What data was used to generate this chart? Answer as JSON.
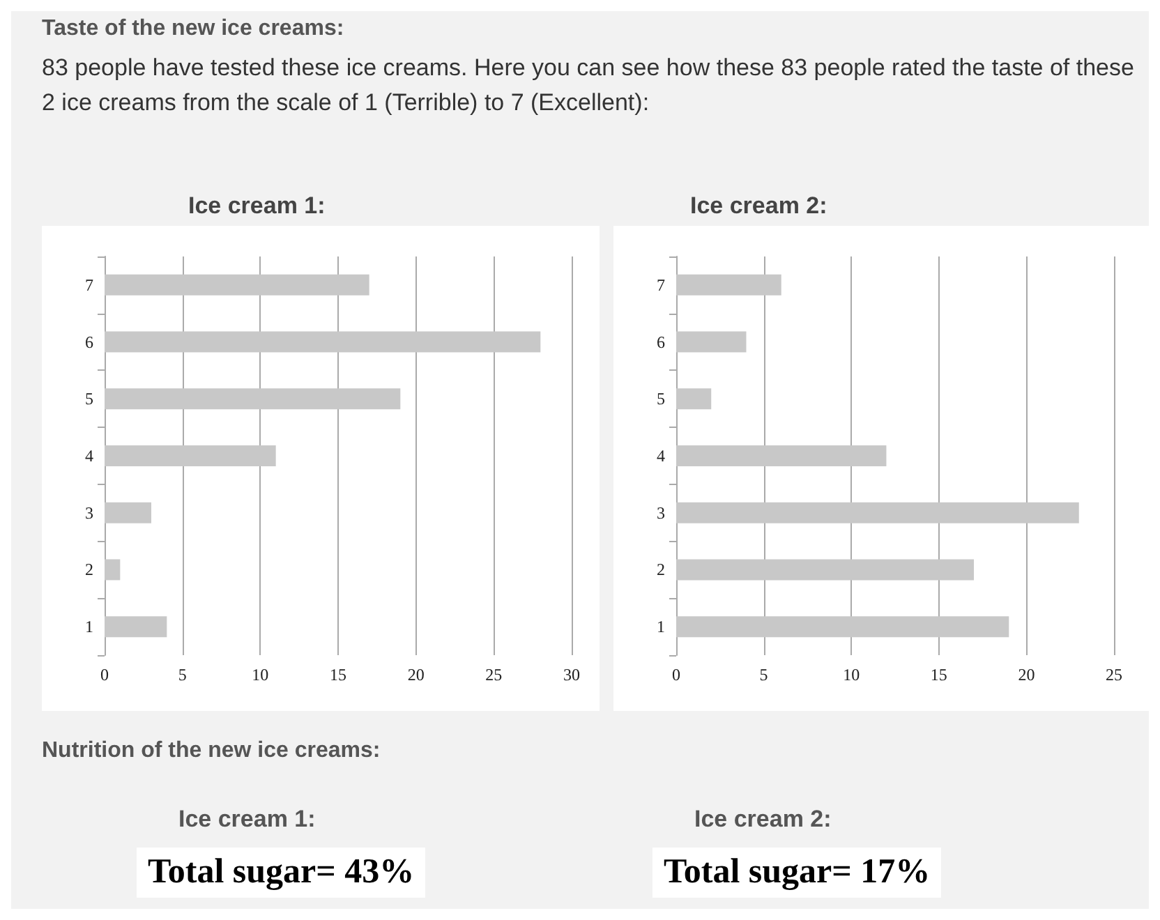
{
  "chart_data": [
    {
      "type": "other",
      "title": "Taste of the new ice creams:",
      "subtitle": "83 people have tested these ice creams. Here you can see how these 83 people rated the taste of these 2 ice creams from the scale of 1 (Terrible) to 7 (Excellent):"
    },
    {
      "type": "bar",
      "title": "Ice cream 1:",
      "orientation": "horizontal",
      "categories": [
        "7",
        "6",
        "5",
        "4",
        "3",
        "2",
        "1"
      ],
      "values": [
        17,
        28,
        19,
        11,
        3,
        1,
        4
      ],
      "color": "#c8c8c8",
      "xlim": [
        0,
        30
      ],
      "xticks": [
        0,
        5,
        10,
        15,
        20,
        25,
        30
      ],
      "grid": "x"
    },
    {
      "type": "bar",
      "title": "Ice cream 2:",
      "orientation": "horizontal",
      "categories": [
        "7",
        "6",
        "5",
        "4",
        "3",
        "2",
        "1"
      ],
      "values": [
        6,
        4,
        2,
        12,
        23,
        17,
        19
      ],
      "color": "#c8c8c8",
      "xlim": [
        0,
        25
      ],
      "xticks": [
        0,
        5,
        10,
        15,
        20,
        25
      ],
      "grid": "x"
    },
    {
      "type": "other",
      "title": "Nutrition of the new ice creams:"
    },
    {
      "type": "other",
      "title": "Ice cream 1:",
      "annotations": [
        "Total sugar= 43%"
      ]
    },
    {
      "type": "other",
      "title": "Ice cream 2:",
      "annotations": [
        "Total sugar= 17%"
      ]
    }
  ]
}
